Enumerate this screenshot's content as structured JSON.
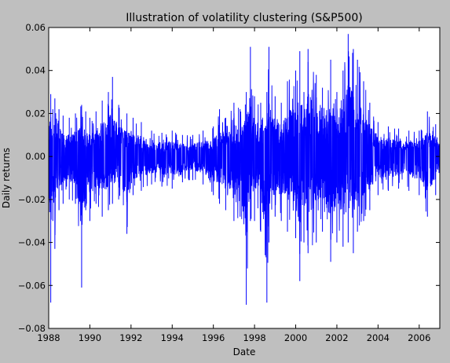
{
  "chart_data": {
    "type": "line",
    "title": "Illustration of volatility clustering (S&P500)",
    "xlabel": "Date",
    "ylabel": "Daily returns",
    "xlim": [
      1988,
      2007
    ],
    "ylim": [
      -0.08,
      0.06
    ],
    "xticks": [
      1988,
      1990,
      1992,
      1994,
      1996,
      1998,
      2000,
      2002,
      2004,
      2006
    ],
    "xtick_labels": [
      "1988",
      "1990",
      "1992",
      "1994",
      "1996",
      "1998",
      "2000",
      "2002",
      "2004",
      "2006"
    ],
    "yticks": [
      -0.08,
      -0.06,
      -0.04,
      -0.02,
      0.0,
      0.02,
      0.04,
      0.06
    ],
    "ytick_labels": [
      "−0.08",
      "−0.06",
      "−0.04",
      "−0.02",
      "0.00",
      "0.02",
      "0.04",
      "0.06"
    ],
    "grid": false,
    "legend": "none",
    "series": [
      {
        "color": "#0000ff",
        "sampling": "approximate envelope read from the plot; daily data not individually legible",
        "x": [
          1988.0,
          1988.1,
          1988.2,
          1988.3,
          1988.5,
          1988.7,
          1989.0,
          1989.3,
          1989.6,
          1989.8,
          1990.0,
          1990.3,
          1990.6,
          1990.9,
          1991.1,
          1991.4,
          1991.8,
          1992.1,
          1992.5,
          1993.0,
          1993.5,
          1994.0,
          1994.5,
          1995.0,
          1995.5,
          1996.0,
          1996.3,
          1996.6,
          1997.0,
          1997.3,
          1997.6,
          1997.8,
          1998.0,
          1998.3,
          1998.6,
          1998.7,
          1999.0,
          1999.3,
          1999.6,
          2000.0,
          2000.2,
          2000.4,
          2000.6,
          2001.0,
          2001.3,
          2001.7,
          2002.0,
          2002.3,
          2002.55,
          2002.8,
          2003.0,
          2003.3,
          2003.6,
          2004.0,
          2004.5,
          2005.0,
          2005.5,
          2006.0,
          2006.4,
          2006.8,
          2007.0
        ],
        "high": [
          0.025,
          0.029,
          0.022,
          0.027,
          0.022,
          0.019,
          0.018,
          0.02,
          0.024,
          0.021,
          0.018,
          0.021,
          0.026,
          0.03,
          0.037,
          0.024,
          0.02,
          0.018,
          0.016,
          0.012,
          0.011,
          0.012,
          0.01,
          0.01,
          0.012,
          0.014,
          0.022,
          0.018,
          0.025,
          0.022,
          0.03,
          0.051,
          0.028,
          0.025,
          0.03,
          0.051,
          0.028,
          0.025,
          0.035,
          0.04,
          0.049,
          0.03,
          0.05,
          0.038,
          0.032,
          0.045,
          0.03,
          0.04,
          0.057,
          0.05,
          0.045,
          0.035,
          0.025,
          0.016,
          0.014,
          0.013,
          0.012,
          0.012,
          0.021,
          0.015,
          0.01
        ],
        "low": [
          -0.03,
          -0.068,
          -0.03,
          -0.043,
          -0.025,
          -0.022,
          -0.02,
          -0.022,
          -0.061,
          -0.025,
          -0.03,
          -0.022,
          -0.028,
          -0.025,
          -0.022,
          -0.02,
          -0.036,
          -0.018,
          -0.016,
          -0.013,
          -0.014,
          -0.015,
          -0.012,
          -0.011,
          -0.013,
          -0.018,
          -0.022,
          -0.025,
          -0.03,
          -0.028,
          -0.069,
          -0.03,
          -0.03,
          -0.035,
          -0.068,
          -0.04,
          -0.028,
          -0.03,
          -0.035,
          -0.038,
          -0.058,
          -0.04,
          -0.045,
          -0.04,
          -0.035,
          -0.049,
          -0.04,
          -0.042,
          -0.04,
          -0.045,
          -0.035,
          -0.03,
          -0.025,
          -0.018,
          -0.016,
          -0.015,
          -0.016,
          -0.018,
          -0.028,
          -0.018,
          -0.012
        ]
      }
    ]
  }
}
